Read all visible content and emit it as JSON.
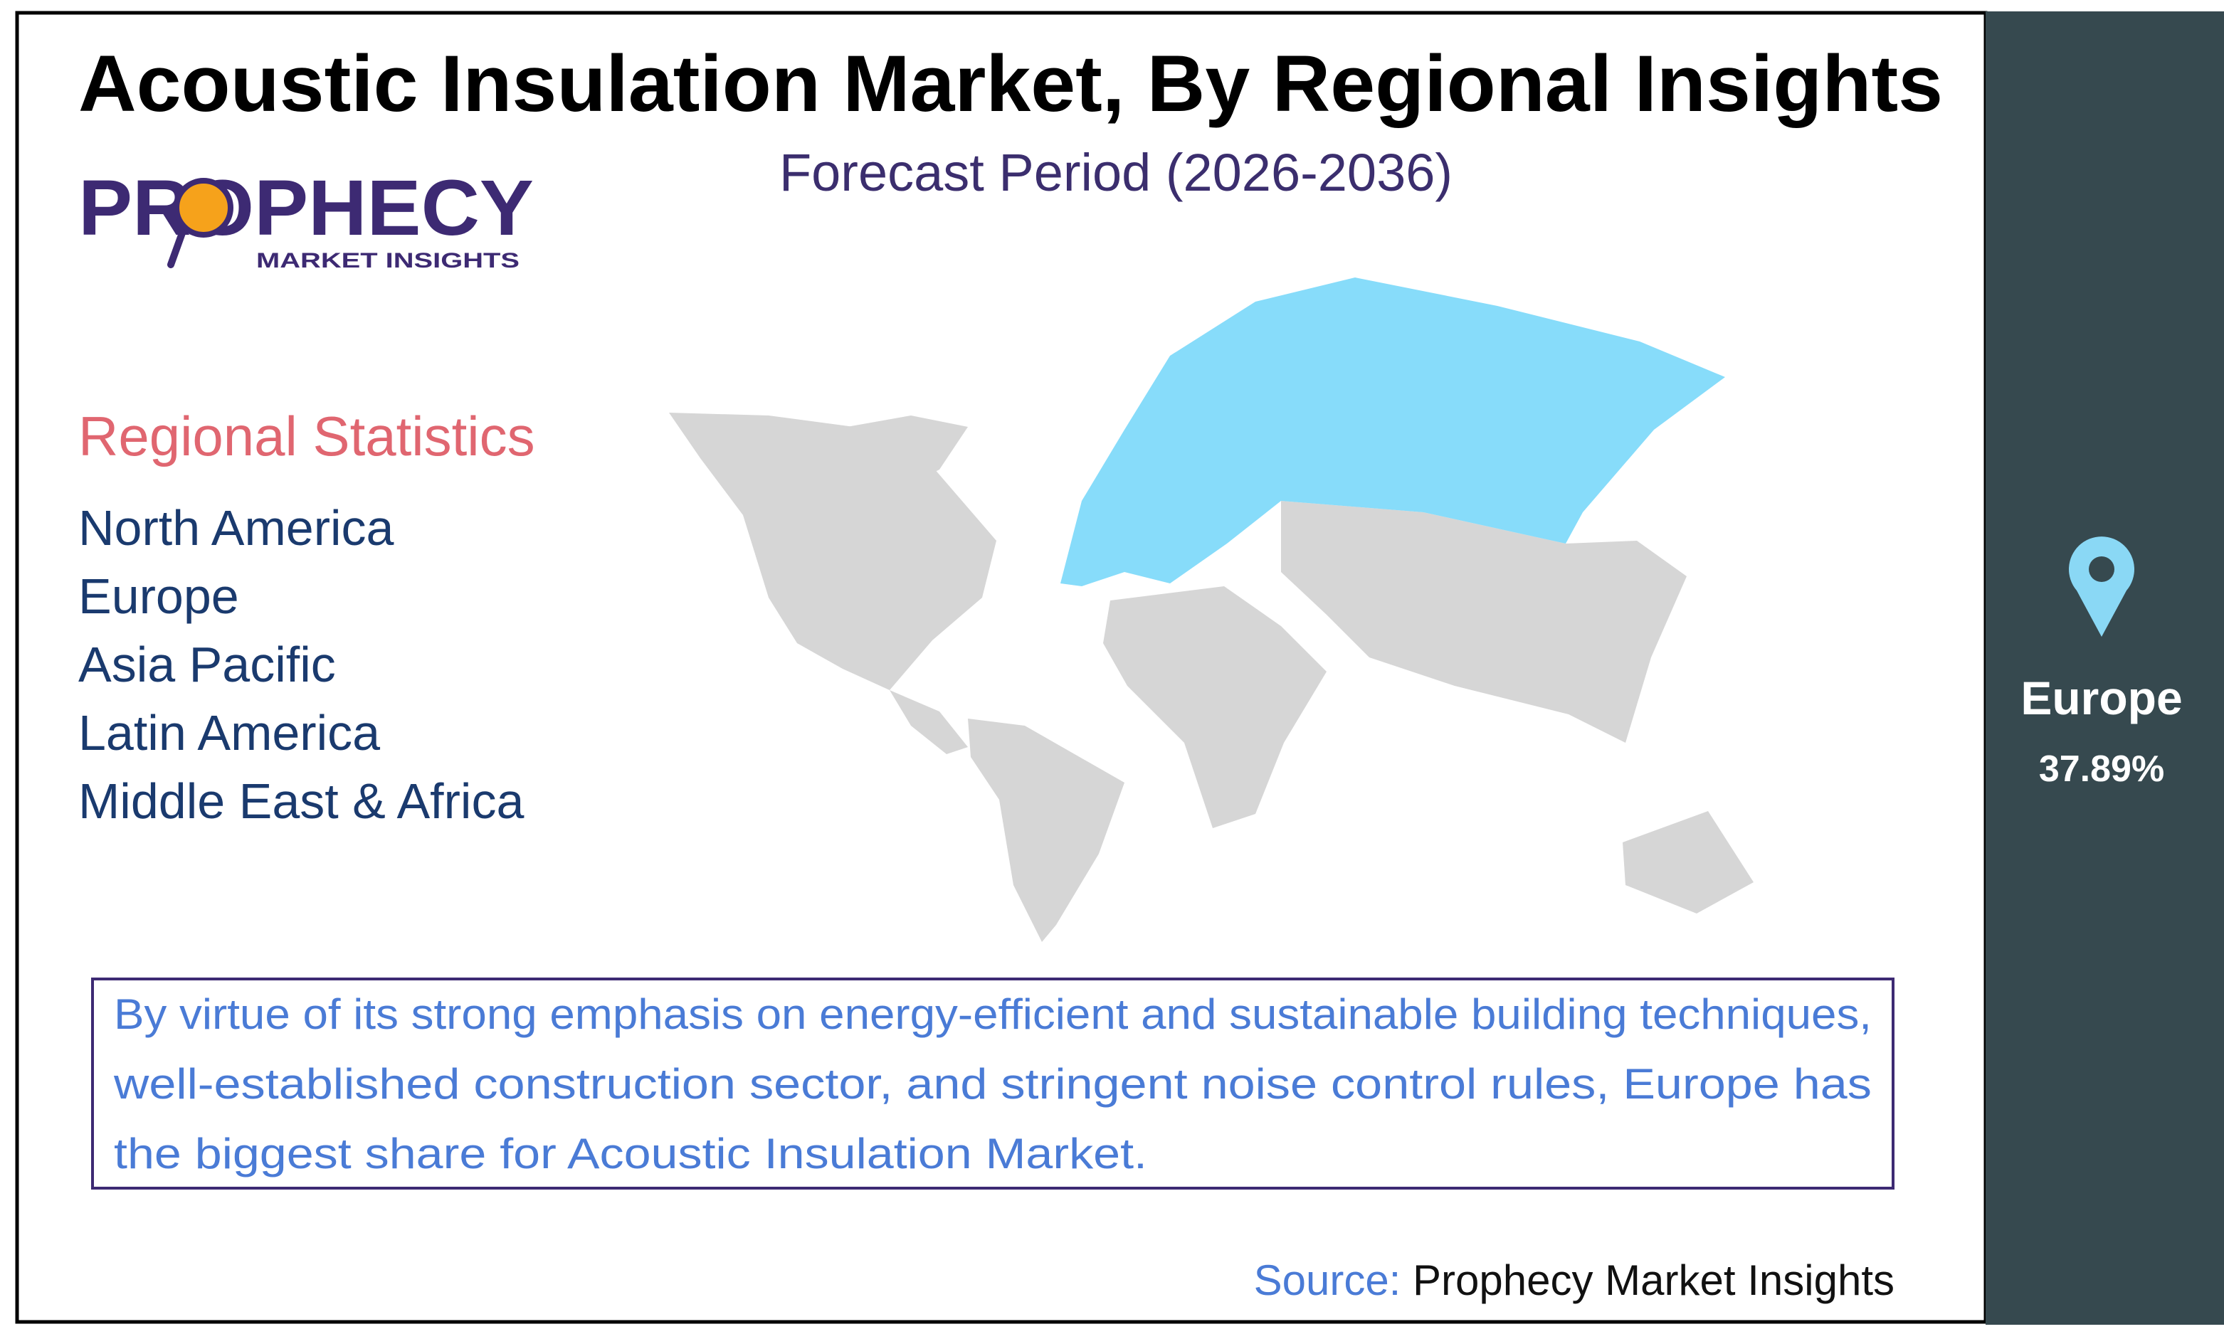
{
  "header": {
    "title": "Acoustic Insulation Market, By Regional Insights",
    "subtitle": "Forecast Period (2026-2036)"
  },
  "logo": {
    "name": "PROPHECY",
    "tagline": "MARKET INSIGHTS"
  },
  "regional_statistics": {
    "heading": "Regional Statistics",
    "regions": [
      "North America",
      "Europe",
      "Asia Pacific",
      "Latin America",
      "Middle East & Africa"
    ]
  },
  "description": [
    "By virtue of its strong emphasis on energy-efficient and sustainable building techniques,",
    "well-established construction sector, and stringent noise control rules, Europe has",
    "the biggest share for Acoustic Insulation Market."
  ],
  "source": {
    "label": "Source:",
    "value": "Prophecy Market Insights"
  },
  "highlight": {
    "region": "Europe",
    "share": "37.89%"
  }
}
